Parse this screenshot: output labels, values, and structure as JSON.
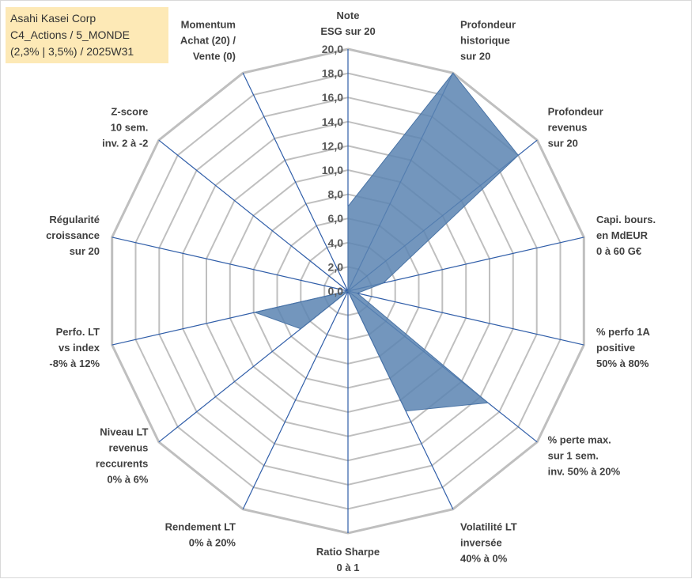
{
  "title_lines": [
    "Asahi Kasei Corp",
    "C4_Actions / 5_MONDE",
    "(2,3% | 3,5%) / 2025W31"
  ],
  "colors": {
    "grid": "#bfbfbf",
    "spoke": "#2f5da8",
    "fill": "#5b84b1",
    "fill_stroke": "#4a74a6",
    "title_bg": "#fde9b6"
  },
  "chart_data": {
    "type": "radar",
    "title": "",
    "rlim": [
      0,
      20
    ],
    "tick_step": 2,
    "tick_labels": [
      "0,0",
      "2,0",
      "4,0",
      "6,0",
      "8,0",
      "10,0",
      "12,0",
      "14,0",
      "16,0",
      "18,0",
      "20,0"
    ],
    "grid": true,
    "axes": [
      [
        "Note",
        "ESG sur 20"
      ],
      [
        "Profondeur",
        "historique",
        "sur 20"
      ],
      [
        "Profondeur",
        "revenus",
        "sur 20"
      ],
      [
        "Capi. bours.",
        "en MdEUR",
        "0 à 60 G€"
      ],
      [
        "% perfo 1A",
        "positive",
        "50% à 80%"
      ],
      [
        "% perte max.",
        "sur 1 sem.",
        "inv. 50% à 20%"
      ],
      [
        "Volatilité LT",
        "inversée",
        "40% à 0%"
      ],
      [
        "Ratio Sharpe",
        "0 à 1"
      ],
      [
        "Rendement LT",
        "0% à 20%"
      ],
      [
        "Niveau LT",
        "revenus",
        "reccurents",
        "0% à 6%"
      ],
      [
        "Perfo. LT",
        "vs index",
        "-8% à 12%"
      ],
      [
        "Régularité",
        "croissance",
        "sur 20"
      ],
      [
        "Z-score",
        "10 sem.",
        "inv. 2 à -2"
      ],
      [
        "Momentum",
        "Achat (20) /",
        "Vente (0)"
      ]
    ],
    "series": [
      {
        "values": [
          7.0,
          20.0,
          18.0,
          3.0,
          0.8,
          14.8,
          11.0,
          0.0,
          0.0,
          5.0,
          7.9,
          0.0,
          0.0,
          0.0
        ]
      }
    ]
  }
}
